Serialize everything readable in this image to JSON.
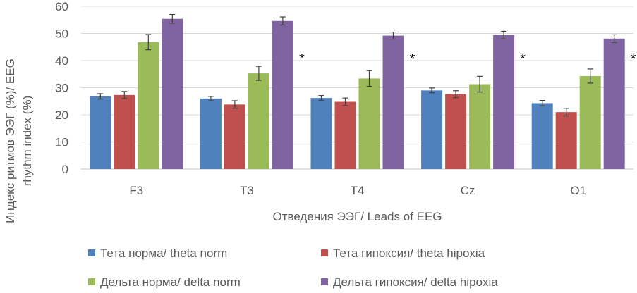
{
  "chart_data": {
    "type": "bar",
    "categories": [
      "F3",
      "T3",
      "T4",
      "Cz",
      "O1"
    ],
    "series": [
      {
        "name": "Тета норма/ theta norm",
        "color": "#4F81BD",
        "values": [
          26.8,
          26.0,
          26.2,
          29.0,
          24.3
        ],
        "errors": [
          1.0,
          0.8,
          0.9,
          0.9,
          1.0
        ]
      },
      {
        "name": "Тета гипоксия/ theta hipoxia",
        "color": "#C0504D",
        "values": [
          27.3,
          23.8,
          24.8,
          27.6,
          21.0
        ],
        "errors": [
          1.3,
          1.4,
          1.4,
          1.3,
          1.4
        ]
      },
      {
        "name": "Дельта норма/ delta norm",
        "color": "#9BBB59",
        "values": [
          46.8,
          35.3,
          33.4,
          31.3,
          34.3
        ],
        "errors": [
          2.8,
          2.6,
          2.9,
          2.9,
          2.6
        ]
      },
      {
        "name": "Дельта гипоксия/ delta hipoxia",
        "color": "#8064A2",
        "values": [
          55.4,
          54.6,
          49.2,
          49.4,
          48.1
        ],
        "errors": [
          1.6,
          1.5,
          1.3,
          1.4,
          1.4
        ]
      }
    ],
    "significance_markers": [
      "",
      "*",
      "*",
      "*",
      "*"
    ],
    "ylim": [
      0,
      60
    ],
    "yticks": [
      0,
      10,
      20,
      30,
      40,
      50,
      60
    ],
    "xlabel": "Отведения ЭЭГ/ Leads of EEG",
    "ylabel": "Индекс ритмов ЭЭГ (%)/  EEG rhythm index (%)",
    "ylabel_lines": [
      "Индекс ритмов ЭЭГ (%)/  EEG",
      "rhythm index (%)"
    ],
    "grid": true,
    "legend_position": "bottom"
  }
}
